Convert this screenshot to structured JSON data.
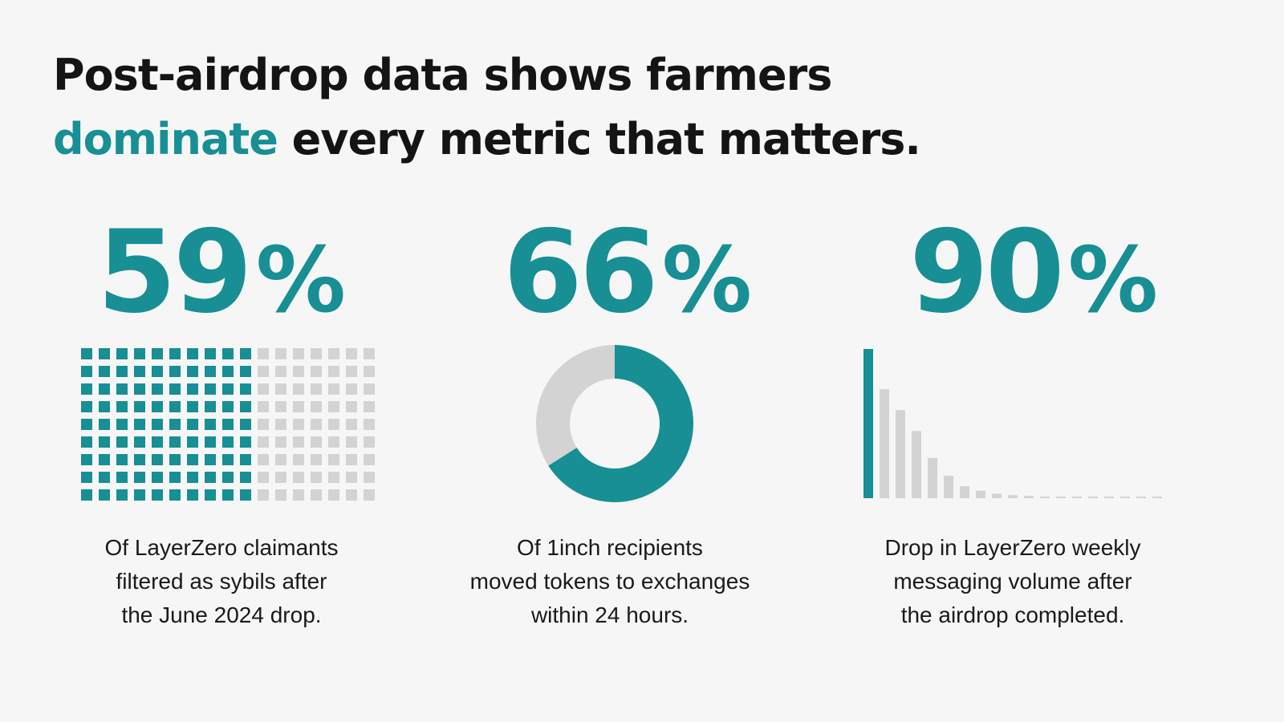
{
  "headline": {
    "line1": "Post-airdrop data shows farmers",
    "accent": "dominate",
    "rest": " every metric that matters."
  },
  "colors": {
    "accent": "#178f94",
    "muted": "#d3d3d3",
    "text": "#141414"
  },
  "stats": [
    {
      "value": "59",
      "unit": "%",
      "caption": [
        "Of LayerZero claimants",
        "filtered as sybils after",
        "the June 2024 drop."
      ]
    },
    {
      "value": "66",
      "unit": "%",
      "caption": [
        "Of 1inch recipients",
        "moved tokens to exchanges",
        "within 24 hours."
      ]
    },
    {
      "value": "90",
      "unit": "%",
      "caption": [
        "Drop in LayerZero weekly",
        "messaging volume after",
        "the airdrop completed."
      ]
    }
  ],
  "chart_data": [
    {
      "type": "waffle",
      "rows": 9,
      "columns": 17,
      "filled_columns": 10,
      "value_percent": 59
    },
    {
      "type": "pie",
      "donut": true,
      "slices": [
        {
          "value": 66,
          "color": "#178f94"
        },
        {
          "value": 34,
          "color": "#d3d3d3"
        }
      ]
    },
    {
      "type": "bar",
      "values": [
        100,
        73,
        59,
        45,
        27,
        15,
        8,
        5,
        3,
        2,
        1.5,
        1,
        1,
        1,
        1,
        1,
        1,
        1,
        1
      ],
      "highlight_index": 0,
      "ylim": [
        0,
        100
      ]
    }
  ]
}
